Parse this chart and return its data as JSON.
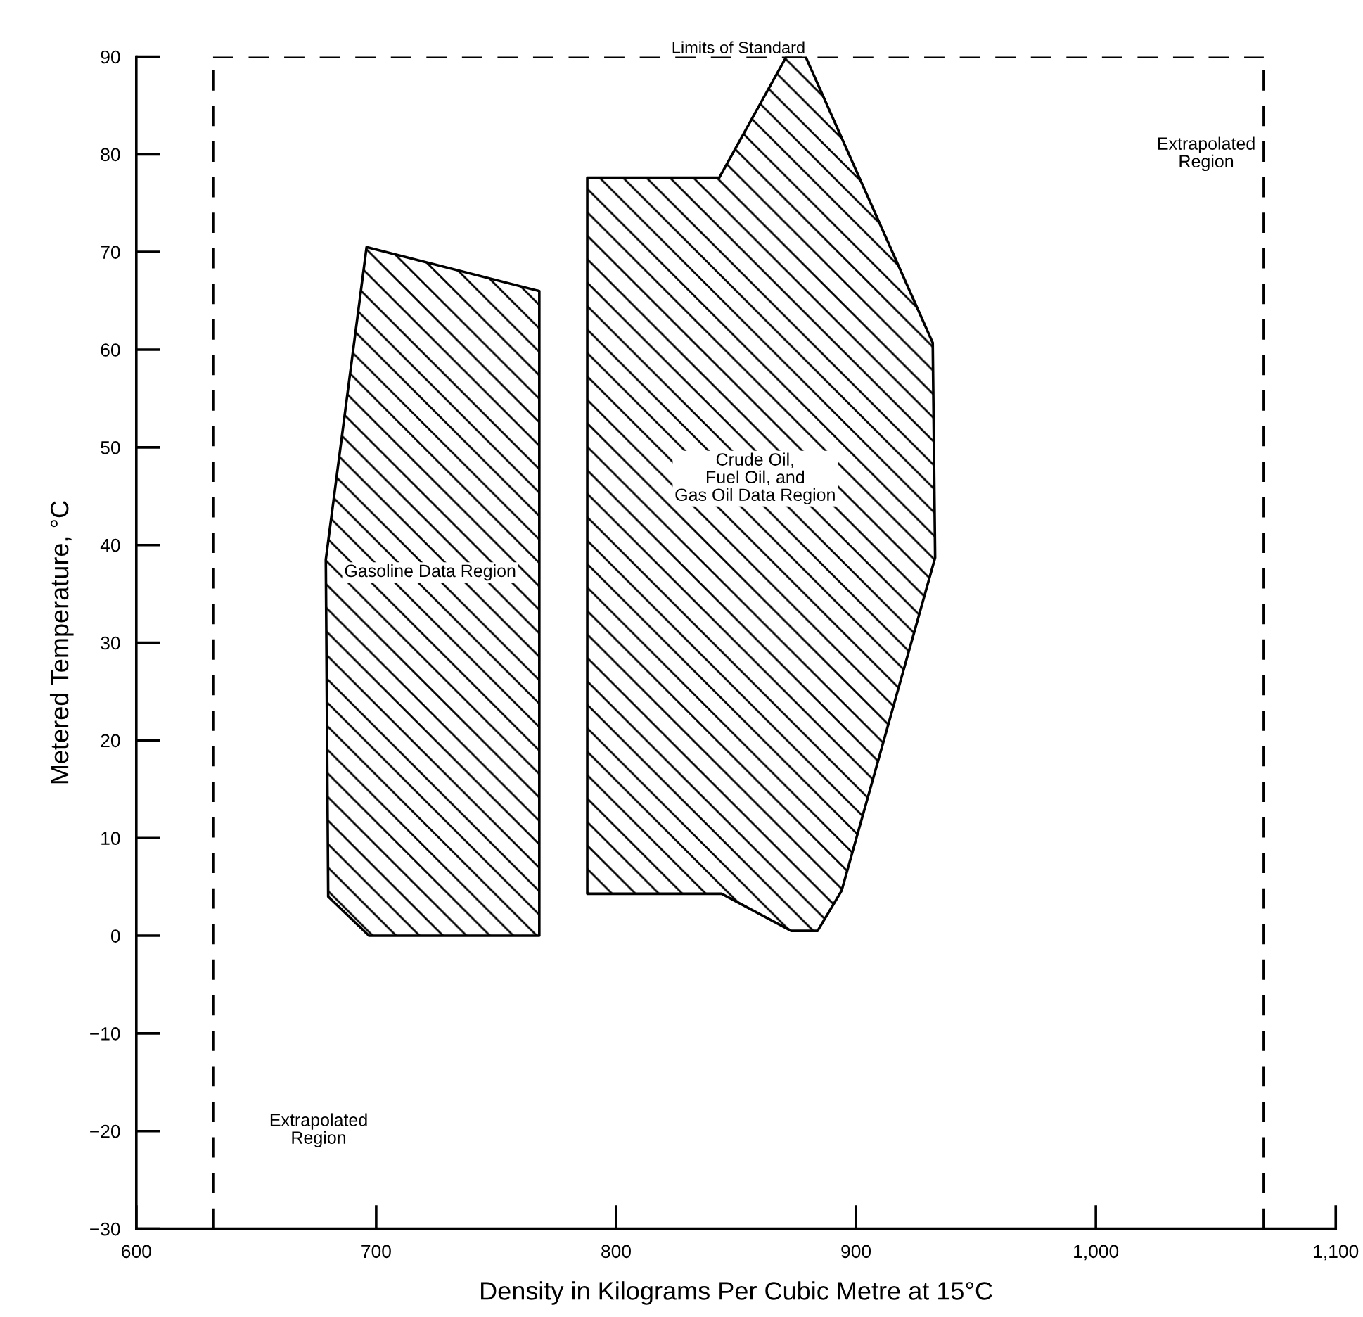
{
  "chart_data": {
    "type": "area",
    "xlabel": "Density in Kilograms Per Cubic Metre at 15°C",
    "ylabel": "Metered Temperature, °C",
    "series": [
      {
        "color": "#000000",
        "x": [
          680,
          679,
          696,
          768,
          768,
          697,
          680
        ],
        "values": [
          4,
          38.5,
          70.5,
          66,
          0,
          0,
          4
        ]
      },
      {
        "color": "#000000",
        "x": [
          788,
          843,
          871,
          879,
          932,
          933,
          894,
          884,
          873,
          844,
          788,
          788
        ],
        "values": [
          77.6,
          77.6,
          90,
          90,
          60.7,
          38.7,
          4.6,
          0.5,
          0.5,
          4.3,
          4.3,
          77.6
        ]
      }
    ],
    "ref_lines": [
      {
        "axis": "x",
        "value": 632,
        "line_style": "dashed",
        "color": "#000000"
      },
      {
        "axis": "x",
        "value": 1070,
        "line_style": "dashed",
        "color": "#000000"
      },
      {
        "axis": "y",
        "value": 90,
        "label": "Limits of Standard",
        "line_style": "dashed",
        "color": "#000000"
      }
    ],
    "annotations": [
      "Gasoline Data Region",
      "Crude Oil,\nFuel Oil, and\nGas Oil Data Region",
      "Extrapolated\nRegion",
      "Extrapolated\nRegion"
    ],
    "xlim": [
      600,
      1100
    ],
    "xticks": [
      600,
      700,
      800,
      900,
      {
        "value": 1000,
        "label": "1,000"
      },
      {
        "value": 1100,
        "label": "1,100"
      }
    ],
    "ylim": [
      -30,
      90
    ],
    "yticks": [
      {
        "value": -30,
        "label": "−30"
      },
      {
        "value": -20,
        "label": "−20"
      },
      {
        "value": -10,
        "label": "−10"
      },
      0,
      10,
      20,
      30,
      40,
      50,
      60,
      70,
      80,
      90
    ],
    "grid": false,
    "legend": false
  }
}
